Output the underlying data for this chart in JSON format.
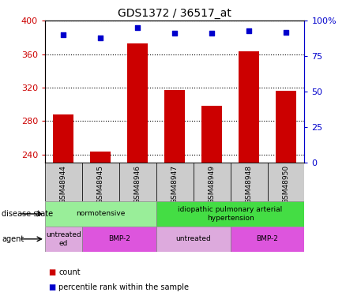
{
  "title": "GDS1372 / 36517_at",
  "samples": [
    "GSM48944",
    "GSM48945",
    "GSM48946",
    "GSM48947",
    "GSM48949",
    "GSM48948",
    "GSM48950"
  ],
  "bar_values": [
    288,
    243,
    373,
    317,
    298,
    363,
    316
  ],
  "percentile_values": [
    90,
    88,
    95,
    91,
    91,
    93,
    92
  ],
  "ylim_left": [
    230,
    400
  ],
  "ylim_right": [
    0,
    100
  ],
  "yticks_left": [
    240,
    280,
    320,
    360,
    400
  ],
  "yticks_right": [
    0,
    25,
    50,
    75,
    100
  ],
  "bar_color": "#cc0000",
  "percentile_color": "#0000cc",
  "bar_bottom": 230,
  "disease_state_groups": [
    {
      "label": "normotensive",
      "start": 0,
      "end": 3,
      "color": "#99ee99"
    },
    {
      "label": "idiopathic pulmonary arterial\nhypertension",
      "start": 3,
      "end": 7,
      "color": "#44dd44"
    }
  ],
  "agent_groups": [
    {
      "label": "untreated\ned",
      "start": 0,
      "end": 1,
      "color": "#ddaadd"
    },
    {
      "label": "BMP-2",
      "start": 1,
      "end": 3,
      "color": "#dd55dd"
    },
    {
      "label": "untreated",
      "start": 3,
      "end": 5,
      "color": "#ddaadd"
    },
    {
      "label": "BMP-2",
      "start": 5,
      "end": 7,
      "color": "#dd55dd"
    }
  ],
  "legend_count_color": "#cc0000",
  "legend_percentile_color": "#0000cc",
  "sample_box_color": "#cccccc"
}
